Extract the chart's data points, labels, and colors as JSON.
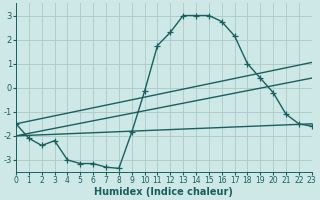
{
  "xlabel": "Humidex (Indice chaleur)",
  "background_color": "#cde8e6",
  "grid_color": "#b0cfcc",
  "line_color": "#1a5f5f",
  "xlim": [
    0,
    23
  ],
  "ylim": [
    -3.5,
    3.5
  ],
  "xticks": [
    0,
    1,
    2,
    3,
    4,
    5,
    6,
    7,
    8,
    9,
    10,
    11,
    12,
    13,
    14,
    15,
    16,
    17,
    18,
    19,
    20,
    21,
    22,
    23
  ],
  "yticks": [
    -3,
    -2,
    -1,
    0,
    1,
    2,
    3
  ],
  "zigzag_x": [
    0,
    1,
    2,
    3,
    4,
    5,
    6,
    7,
    8,
    9,
    10,
    11,
    12,
    13,
    14,
    15,
    16,
    17,
    18,
    19,
    20,
    21,
    22,
    23
  ],
  "zigzag_y": [
    -1.5,
    -2.1,
    -2.4,
    -2.2,
    -3.0,
    -3.15,
    -3.15,
    -3.3,
    -3.35,
    -1.85,
    -0.15,
    1.75,
    2.3,
    3.0,
    3.0,
    3.0,
    2.75,
    2.15,
    1.0,
    0.4,
    -0.2,
    -1.1,
    -1.5,
    -1.6
  ],
  "line1_x": [
    0,
    23
  ],
  "line1_y": [
    -1.5,
    1.05
  ],
  "line2_x": [
    0,
    23
  ],
  "line2_y": [
    -2.0,
    0.4
  ],
  "line3_x": [
    0,
    23
  ],
  "line3_y": [
    -2.0,
    -1.5
  ]
}
